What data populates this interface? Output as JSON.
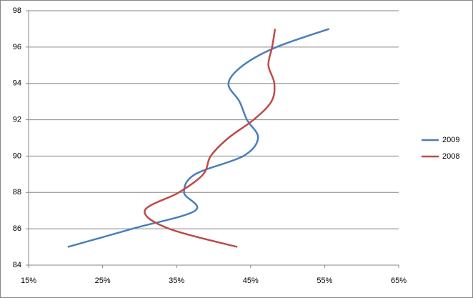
{
  "chart_data": {
    "type": "line",
    "series": [
      {
        "name": "2009",
        "color": "#4a7ebb",
        "x": [
          20.3,
          29,
          37.5,
          36,
          37.5,
          44,
          46,
          44.5,
          43.5,
          42,
          44,
          48.5,
          55.6
        ],
        "values": [
          85,
          86,
          87,
          88,
          89,
          90,
          91,
          92,
          93,
          94,
          95,
          96,
          97
        ]
      },
      {
        "name": "2008",
        "color": "#be4b48",
        "x": [
          43.2,
          34,
          30.7,
          35.3,
          38.6,
          39.6,
          42,
          45.4,
          47.8,
          48.2,
          47.4,
          47.9,
          48.3
        ],
        "values": [
          85,
          86,
          87,
          88,
          89,
          90,
          91,
          92,
          93,
          94,
          95,
          96,
          97
        ]
      }
    ],
    "xlim": [
      15,
      65
    ],
    "xticks": [
      {
        "value": 15,
        "label": "15%"
      },
      {
        "value": 25,
        "label": "25%"
      },
      {
        "value": 35,
        "label": "35%"
      },
      {
        "value": 45,
        "label": "45%"
      },
      {
        "value": 55,
        "label": "55%"
      },
      {
        "value": 65,
        "label": "65%"
      }
    ],
    "ylim": [
      84,
      98
    ],
    "yticks": [
      84,
      86,
      88,
      90,
      92,
      94,
      96,
      98
    ],
    "grid": true,
    "legend": "right"
  }
}
